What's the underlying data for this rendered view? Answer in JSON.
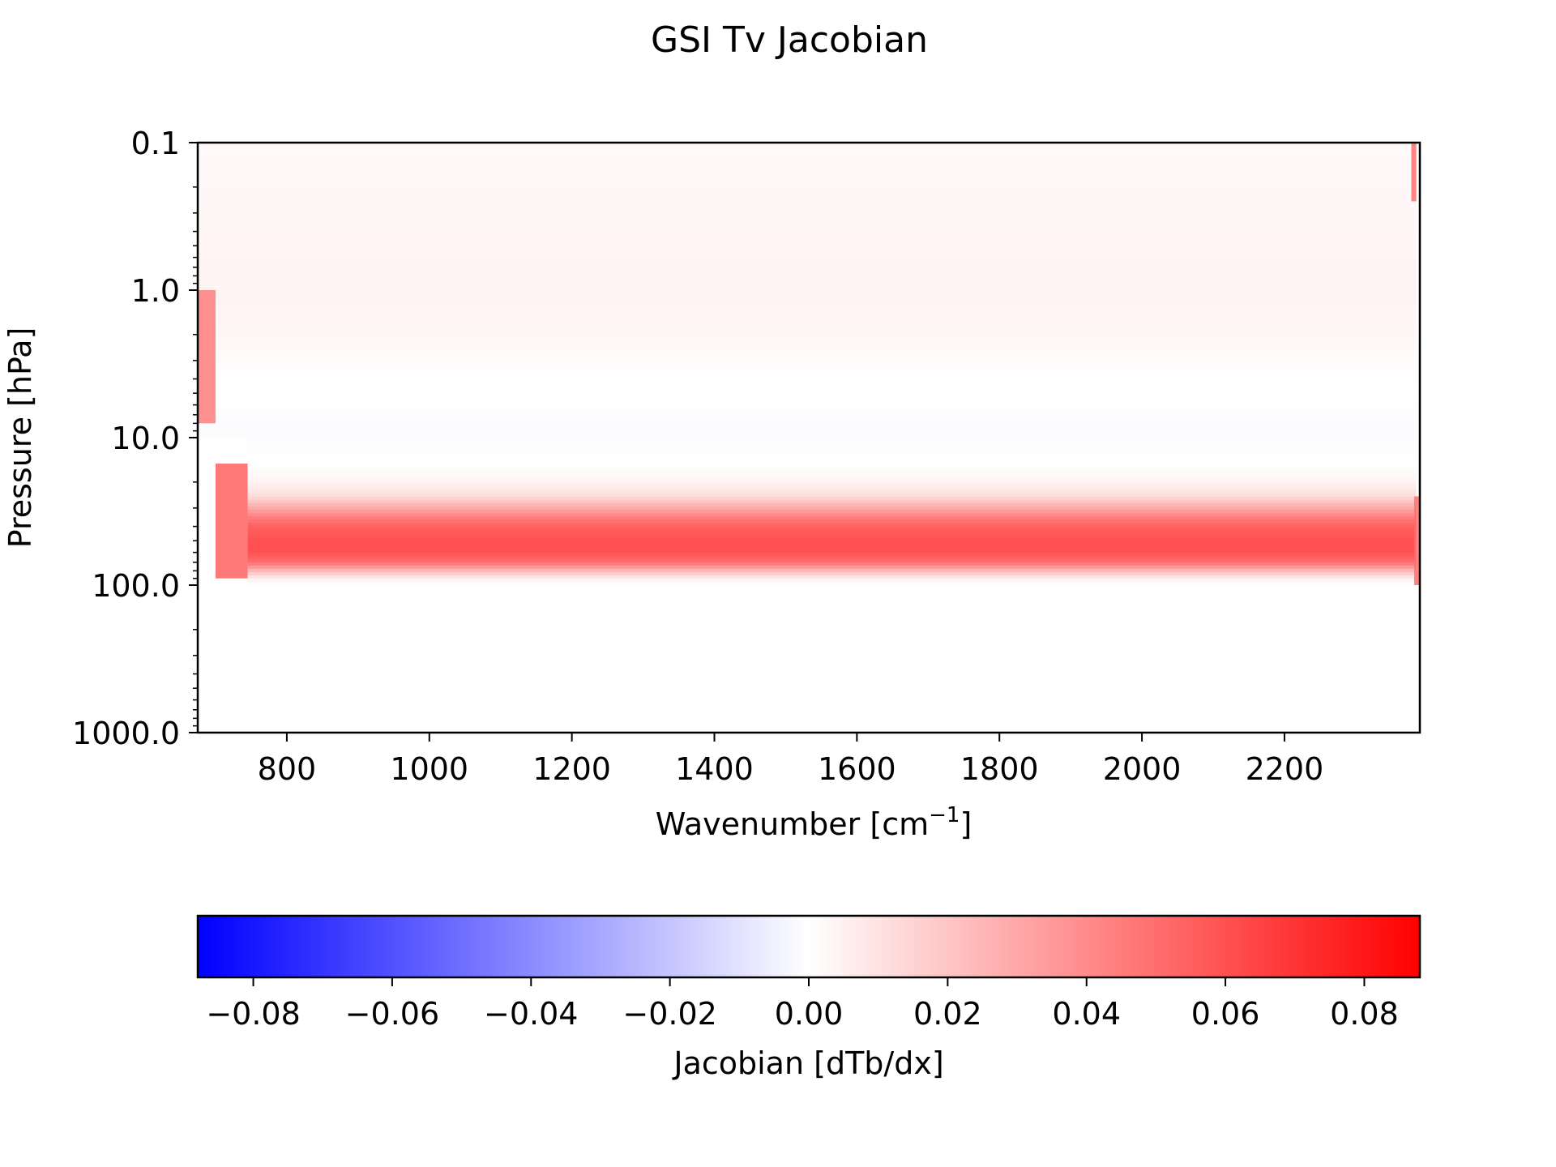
{
  "chart_data": {
    "type": "heatmap",
    "title": "GSI Tv Jacobian",
    "xlabel": "Wavenumber [cm",
    "xlabel_sup": "−1",
    "xlabel_suffix": "]",
    "ylabel": "Pressure [hPa]",
    "xlim": [
      675,
      2390
    ],
    "ylim": [
      0.1,
      1000
    ],
    "y_scale": "log",
    "y_inverted": true,
    "x_ticks": [
      800,
      1000,
      1200,
      1400,
      1600,
      1800,
      2000,
      2200
    ],
    "x_tick_labels": [
      "800",
      "1000",
      "1200",
      "1400",
      "1600",
      "1800",
      "2000",
      "2200"
    ],
    "y_ticks": [
      0.1,
      1,
      10,
      100,
      1000
    ],
    "y_tick_labels": [
      "0.1",
      "1.0",
      "10.0",
      "100.0",
      "1000.0"
    ],
    "grid": false,
    "colormap": "bwr",
    "colormap_colors": [
      "#0000ff",
      "#ffffff",
      "#ff0000"
    ],
    "color_limits": [
      -0.088,
      0.088
    ],
    "colorbar": {
      "label": "Jacobian [dTb/dx]",
      "orientation": "horizontal",
      "placement": "bottom",
      "ticks": [
        -0.08,
        -0.06,
        -0.04,
        -0.02,
        0.0,
        0.02,
        0.04,
        0.06,
        0.08
      ],
      "tick_labels": [
        "−0.08",
        "−0.06",
        "−0.04",
        "−0.02",
        "0.00",
        "0.02",
        "0.04",
        "0.06",
        "0.08"
      ]
    },
    "profile": {
      "pressure_hPa": [
        0.1,
        0.3,
        1.0,
        2.0,
        3.0,
        5.0,
        8.0,
        10.0,
        15.0,
        20.0,
        25.0,
        30.0,
        35.0,
        40.0,
        50.0,
        60.0,
        70.0,
        80.0,
        90.0,
        100.0,
        1000.0
      ],
      "jacobian": [
        0.002,
        0.003,
        0.004,
        0.003,
        0.001,
        0.0,
        -0.001,
        -0.001,
        0.0,
        0.004,
        0.012,
        0.03,
        0.045,
        0.055,
        0.06,
        0.06,
        0.05,
        0.025,
        0.006,
        0.0,
        0.0
      ],
      "x_range": [
        745,
        2385
      ]
    },
    "edge_features": [
      {
        "x_range": [
          675,
          700
        ],
        "pressure_range": [
          1.0,
          8.0
        ],
        "jacobian": 0.045
      },
      {
        "x_range": [
          700,
          745
        ],
        "pressure_range": [
          15.0,
          90.0
        ],
        "jacobian": 0.055
      },
      {
        "x_range": [
          2378,
          2385
        ],
        "pressure_range": [
          0.1,
          0.25
        ],
        "jacobian": 0.05
      },
      {
        "x_range": [
          2382,
          2390
        ],
        "pressure_range": [
          25.0,
          100.0
        ],
        "jacobian": 0.05
      }
    ]
  }
}
